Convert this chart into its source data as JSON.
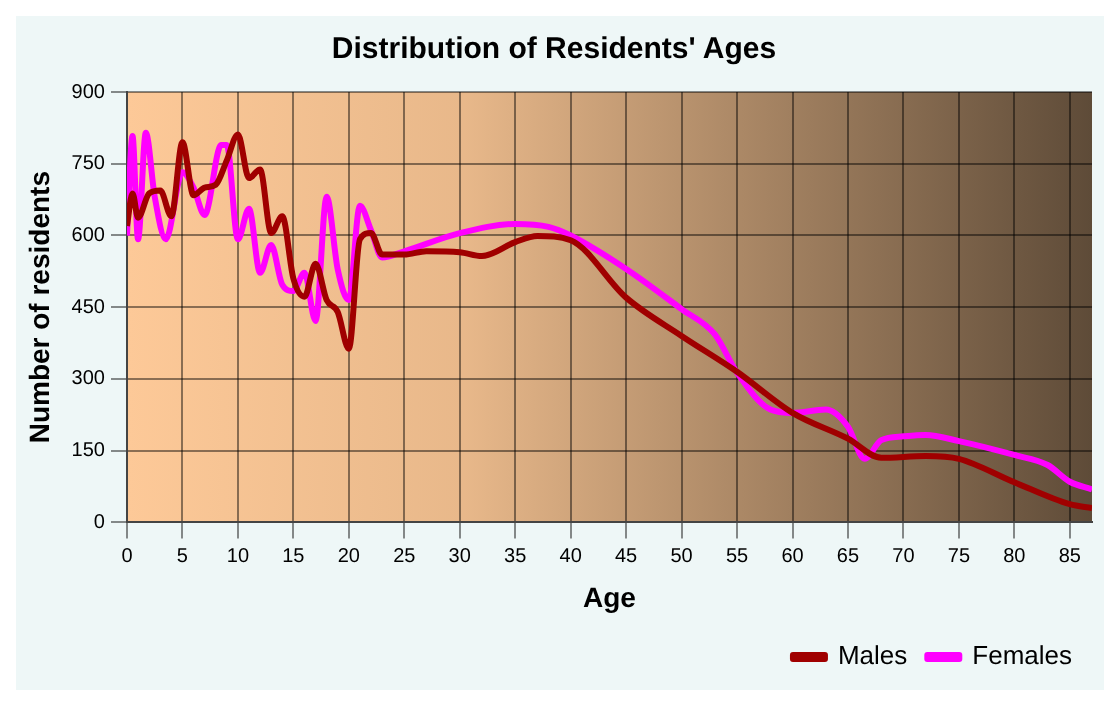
{
  "chart_data": {
    "type": "line",
    "title": "Distribution of Residents' Ages",
    "xlabel": "Age",
    "ylabel": "Number of residents",
    "xlim": [
      0,
      87
    ],
    "xticks": [
      0,
      5,
      10,
      15,
      20,
      25,
      30,
      35,
      40,
      45,
      50,
      55,
      60,
      65,
      70,
      75,
      80,
      85
    ],
    "ylim": [
      0,
      900
    ],
    "yticks": [
      0,
      150,
      300,
      450,
      600,
      750,
      900
    ],
    "grid": true,
    "legend": "bottom right",
    "marker": "none",
    "line_style": "solid",
    "series": [
      {
        "name": "Males",
        "color": "#a00000",
        "x": [
          0,
          0.5,
          1,
          2,
          3,
          4,
          5,
          6,
          7,
          8,
          9,
          10,
          11,
          12,
          13,
          14,
          15,
          16,
          17,
          18,
          19,
          20,
          21,
          22,
          23,
          25,
          27,
          30,
          32,
          35,
          37,
          40,
          45,
          50,
          55,
          60,
          65,
          68,
          72,
          75,
          80,
          85,
          87
        ],
        "values": [
          620,
          688,
          637,
          688,
          694,
          640,
          795,
          684,
          700,
          706,
          757,
          811,
          720,
          738,
          605,
          640,
          510,
          472,
          541,
          465,
          440,
          363,
          592,
          605,
          560,
          560,
          567,
          565,
          557,
          586,
          599,
          590,
          470,
          390,
          315,
          229,
          175,
          135,
          139,
          133,
          84,
          38,
          30
        ]
      },
      {
        "name": "Females",
        "color": "#ff00ff",
        "x": [
          0,
          0.5,
          1,
          1.7,
          2.5,
          3.5,
          5,
          6,
          7,
          8.5,
          9,
          10,
          11,
          12,
          13,
          14,
          15,
          16,
          17,
          18,
          19,
          20,
          21,
          22,
          23,
          25,
          30,
          35,
          38,
          40,
          45,
          50,
          53,
          55,
          58,
          60,
          63,
          65,
          66.5,
          68,
          70,
          72,
          75,
          80,
          83,
          85,
          87
        ],
        "values": [
          600,
          808,
          592,
          815,
          681,
          592,
          732,
          700,
          643,
          789,
          789,
          592,
          656,
          522,
          580,
          497,
          484,
          522,
          421,
          681,
          529,
          465,
          662,
          611,
          554,
          567,
          605,
          624,
          618,
          600,
          530,
          446,
          393,
          313,
          236,
          229,
          236,
          200,
          133,
          172,
          180,
          183,
          170,
          141,
          120,
          85,
          69
        ]
      }
    ]
  }
}
